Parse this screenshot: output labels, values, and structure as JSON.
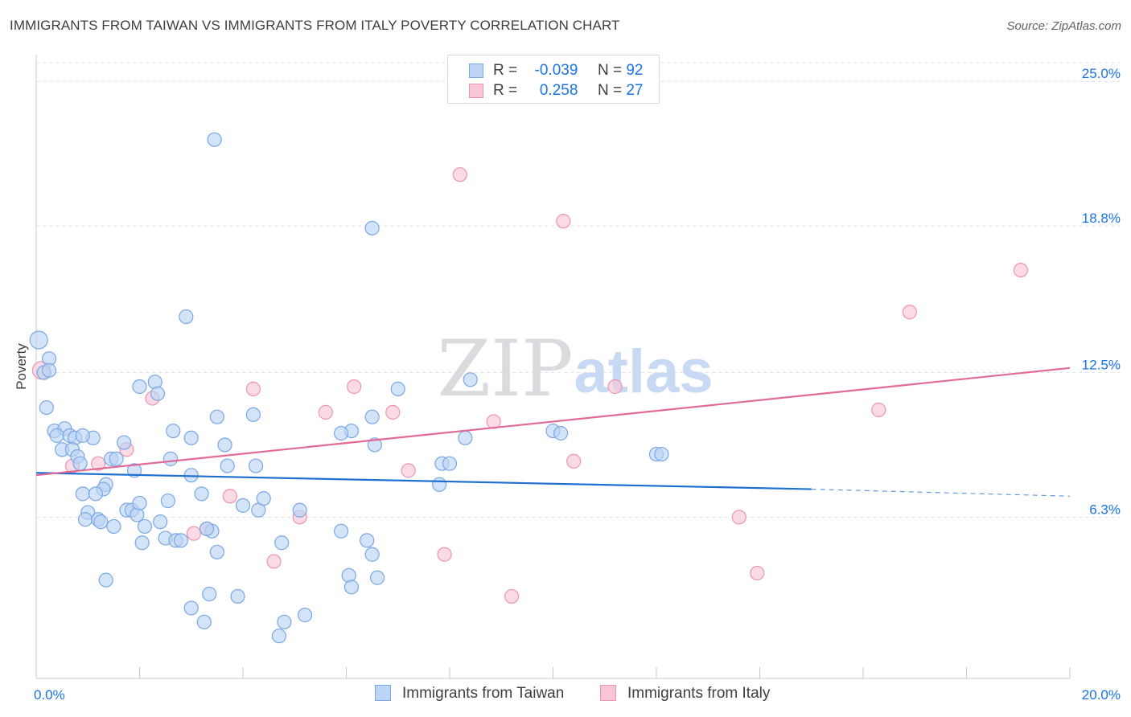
{
  "header": {
    "title": "IMMIGRANTS FROM TAIWAN VS IMMIGRANTS FROM ITALY POVERTY CORRELATION CHART",
    "source": "Source: ZipAtlas.com"
  },
  "legend": {
    "rows": [
      {
        "r_label": "R =",
        "r_value": "-0.039",
        "n_label": "N =",
        "n_value": "92"
      },
      {
        "r_label": "R =",
        "r_value": "0.258",
        "n_label": "N =",
        "n_value": "27"
      }
    ]
  },
  "colors": {
    "taiwan_fill": "#bcd4f5",
    "taiwan_stroke": "#7aa7e6",
    "taiwan_line": "#1f6fd1",
    "italy_fill": "#f8c6d7",
    "italy_stroke": "#ee93b2",
    "italy_line": "#e26a97",
    "grid": "#dfe1e5",
    "tick_text": "#1a73e8"
  },
  "chart_data": {
    "type": "scatter",
    "title": "IMMIGRANTS FROM TAIWAN VS IMMIGRANTS FROM ITALY POVERTY CORRELATION CHART",
    "xlabel": "",
    "ylabel": "Poverty",
    "xlim": [
      0,
      20
    ],
    "ylim": [
      0,
      25.8
    ],
    "x_tick_labels": [
      {
        "value": 0,
        "label": "0.0%"
      },
      {
        "value": 20,
        "label": "20.0%"
      }
    ],
    "y_tick_labels": [
      {
        "value": 6.3,
        "label": "6.3%"
      },
      {
        "value": 12.5,
        "label": "12.5%"
      },
      {
        "value": 18.8,
        "label": "18.8%"
      },
      {
        "value": 25.0,
        "label": "25.0%"
      }
    ],
    "watermark": {
      "zip": "ZIP",
      "atlas": "atlas"
    },
    "series": [
      {
        "name": "Immigrants from Taiwan",
        "r": -0.039,
        "n": 92,
        "trend": {
          "x0": 0,
          "y0": 8.2,
          "x1": 15,
          "y1": 7.5,
          "dash_to_x": 20,
          "dash_to_y": 7.2
        },
        "points": [
          [
            0.05,
            13.9
          ],
          [
            0.25,
            13.1
          ],
          [
            0.15,
            12.5
          ],
          [
            0.25,
            12.6
          ],
          [
            0.2,
            11.0
          ],
          [
            0.35,
            10.0
          ],
          [
            0.55,
            10.1
          ],
          [
            0.4,
            9.8
          ],
          [
            0.65,
            9.8
          ],
          [
            0.75,
            9.7
          ],
          [
            0.5,
            9.2
          ],
          [
            0.7,
            9.2
          ],
          [
            0.8,
            8.9
          ],
          [
            0.85,
            8.6
          ],
          [
            1.1,
            9.7
          ],
          [
            1.7,
            9.5
          ],
          [
            1.45,
            8.8
          ],
          [
            1.55,
            8.8
          ],
          [
            1.9,
            8.3
          ],
          [
            1.35,
            7.7
          ],
          [
            1.3,
            7.5
          ],
          [
            0.9,
            7.3
          ],
          [
            1.15,
            7.3
          ],
          [
            1.0,
            6.5
          ],
          [
            0.95,
            6.2
          ],
          [
            1.2,
            6.2
          ],
          [
            1.25,
            6.1
          ],
          [
            1.5,
            5.9
          ],
          [
            1.75,
            6.6
          ],
          [
            1.85,
            6.6
          ],
          [
            1.95,
            6.4
          ],
          [
            2.0,
            6.9
          ],
          [
            2.1,
            5.9
          ],
          [
            2.05,
            5.2
          ],
          [
            2.4,
            6.1
          ],
          [
            2.5,
            5.4
          ],
          [
            2.7,
            5.3
          ],
          [
            2.8,
            5.3
          ],
          [
            2.55,
            7.0
          ],
          [
            2.6,
            8.8
          ],
          [
            2.65,
            10.0
          ],
          [
            3.0,
            8.1
          ],
          [
            3.0,
            9.7
          ],
          [
            2.9,
            14.9
          ],
          [
            2.0,
            11.9
          ],
          [
            2.3,
            12.1
          ],
          [
            2.35,
            11.6
          ],
          [
            3.2,
            7.3
          ],
          [
            3.4,
            5.7
          ],
          [
            3.3,
            5.8
          ],
          [
            3.5,
            10.6
          ],
          [
            3.65,
            9.4
          ],
          [
            3.7,
            8.5
          ],
          [
            3.45,
            22.5
          ],
          [
            3.5,
            4.8
          ],
          [
            3.35,
            3.0
          ],
          [
            3.0,
            2.4
          ],
          [
            3.25,
            1.8
          ],
          [
            3.9,
            2.9
          ],
          [
            4.0,
            6.8
          ],
          [
            4.3,
            6.6
          ],
          [
            4.4,
            7.1
          ],
          [
            4.25,
            8.5
          ],
          [
            4.2,
            10.7
          ],
          [
            5.1,
            6.6
          ],
          [
            4.75,
            5.2
          ],
          [
            4.8,
            1.8
          ],
          [
            4.7,
            1.2
          ],
          [
            5.2,
            2.1
          ],
          [
            5.9,
            5.7
          ],
          [
            6.05,
            3.8
          ],
          [
            6.1,
            3.3
          ],
          [
            6.4,
            5.3
          ],
          [
            6.5,
            4.7
          ],
          [
            6.6,
            3.7
          ],
          [
            6.5,
            10.6
          ],
          [
            6.55,
            9.4
          ],
          [
            6.1,
            10.0
          ],
          [
            5.9,
            9.9
          ],
          [
            6.5,
            18.7
          ],
          [
            7.0,
            11.8
          ],
          [
            7.8,
            7.7
          ],
          [
            7.85,
            8.6
          ],
          [
            8.0,
            8.6
          ],
          [
            8.3,
            9.7
          ],
          [
            8.4,
            12.2
          ],
          [
            10.0,
            10.0
          ],
          [
            10.15,
            9.9
          ],
          [
            12.0,
            9.0
          ],
          [
            12.1,
            9.0
          ],
          [
            1.35,
            3.6
          ],
          [
            0.9,
            9.8
          ]
        ]
      },
      {
        "name": "Immigrants from Italy",
        "r": 0.258,
        "n": 27,
        "trend": {
          "x0": 0,
          "y0": 8.1,
          "x1": 20,
          "y1": 12.7
        },
        "points": [
          [
            0.1,
            12.6
          ],
          [
            0.7,
            8.5
          ],
          [
            1.2,
            8.6
          ],
          [
            1.75,
            9.2
          ],
          [
            2.25,
            11.4
          ],
          [
            3.05,
            5.6
          ],
          [
            3.3,
            5.8
          ],
          [
            3.75,
            7.2
          ],
          [
            4.2,
            11.8
          ],
          [
            4.6,
            4.4
          ],
          [
            5.1,
            6.3
          ],
          [
            5.6,
            10.8
          ],
          [
            6.15,
            11.9
          ],
          [
            6.9,
            10.8
          ],
          [
            7.2,
            8.3
          ],
          [
            7.9,
            4.7
          ],
          [
            8.2,
            21.0
          ],
          [
            8.85,
            10.4
          ],
          [
            9.2,
            2.9
          ],
          [
            10.2,
            19.0
          ],
          [
            10.4,
            8.7
          ],
          [
            11.2,
            11.9
          ],
          [
            13.6,
            6.3
          ],
          [
            13.95,
            3.9
          ],
          [
            16.3,
            10.9
          ],
          [
            16.9,
            15.1
          ],
          [
            19.05,
            16.9
          ]
        ]
      }
    ]
  }
}
